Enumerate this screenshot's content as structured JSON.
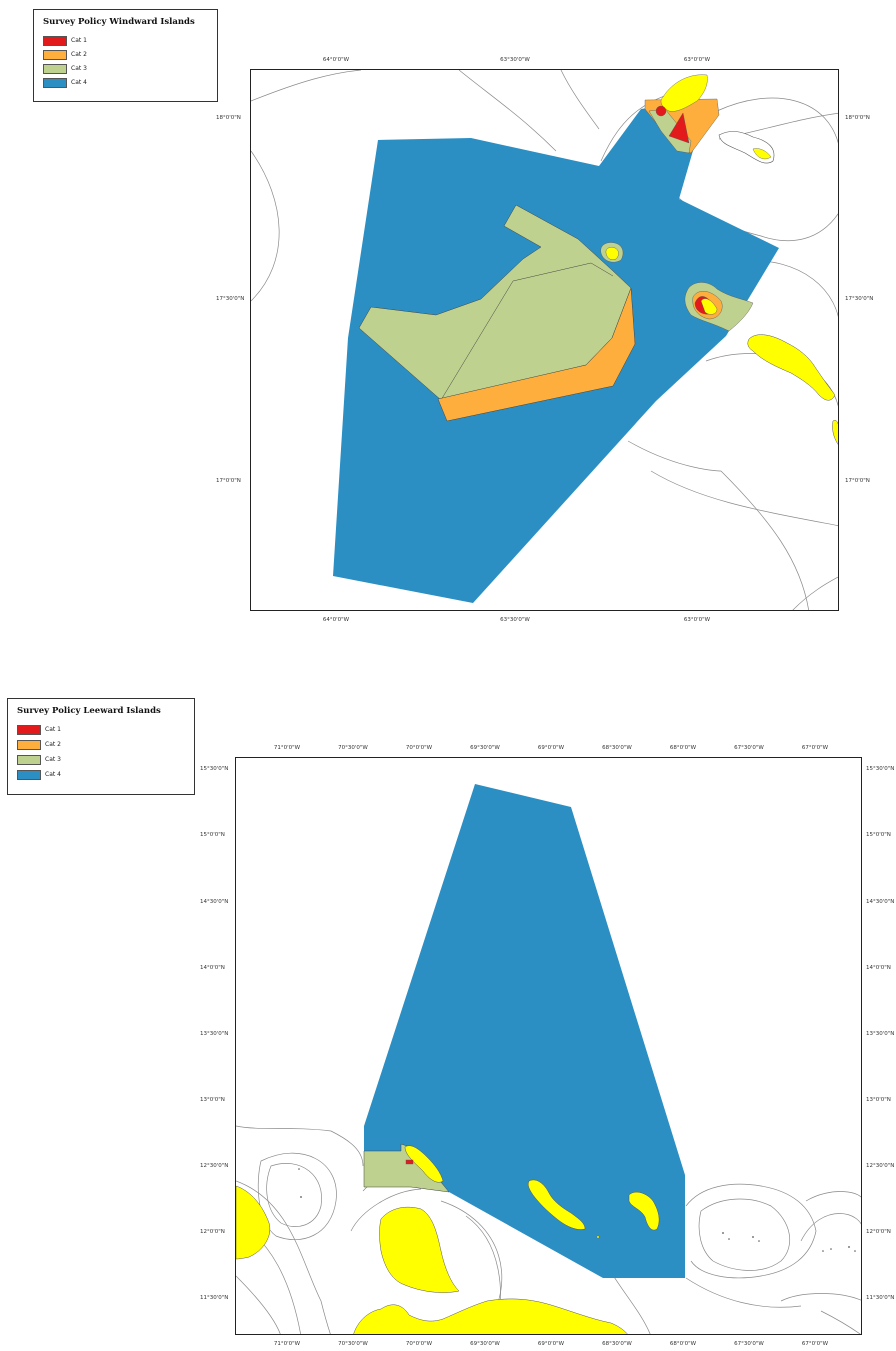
{
  "colors": {
    "cat1": "#e31a1c",
    "cat2": "#fdae3d",
    "cat3": "#bfd18e",
    "cat4": "#2b8fc4",
    "land": "#ffff00",
    "line": "#8a8a8a"
  },
  "windward": {
    "legend_title": "Survey Policy Windward Islands",
    "legend_items": [
      {
        "label": "Cat 1",
        "color": "#e31a1c"
      },
      {
        "label": "Cat 2",
        "color": "#fdae3d"
      },
      {
        "label": "Cat 3",
        "color": "#bfd18e"
      },
      {
        "label": "Cat 4",
        "color": "#2b8fc4"
      }
    ],
    "lon_labels": [
      "64°0'0\"W",
      "63°30'0\"W",
      "63°0'0\"W"
    ],
    "lat_labels": [
      "18°0'0\"N",
      "17°30'0\"N",
      "17°0'0\"N"
    ]
  },
  "leeward": {
    "legend_title": "Survey Policy Leeward Islands",
    "legend_items": [
      {
        "label": "Cat 1",
        "color": "#e31a1c"
      },
      {
        "label": "Cat 2",
        "color": "#fdae3d"
      },
      {
        "label": "Cat 3",
        "color": "#bfd18e"
      },
      {
        "label": "Cat 4",
        "color": "#2b8fc4"
      }
    ],
    "lon_labels": [
      "71°0'0\"W",
      "70°30'0\"W",
      "70°0'0\"W",
      "69°30'0\"W",
      "69°0'0\"W",
      "68°30'0\"W",
      "68°0'0\"W",
      "67°30'0\"W",
      "67°0'0\"W"
    ],
    "lat_labels": [
      "15°30'0\"N",
      "15°0'0\"N",
      "14°30'0\"N",
      "14°0'0\"N",
      "13°30'0\"N",
      "13°0'0\"N",
      "12°30'0\"N",
      "12°0'0\"N",
      "11°30'0\"N"
    ]
  }
}
